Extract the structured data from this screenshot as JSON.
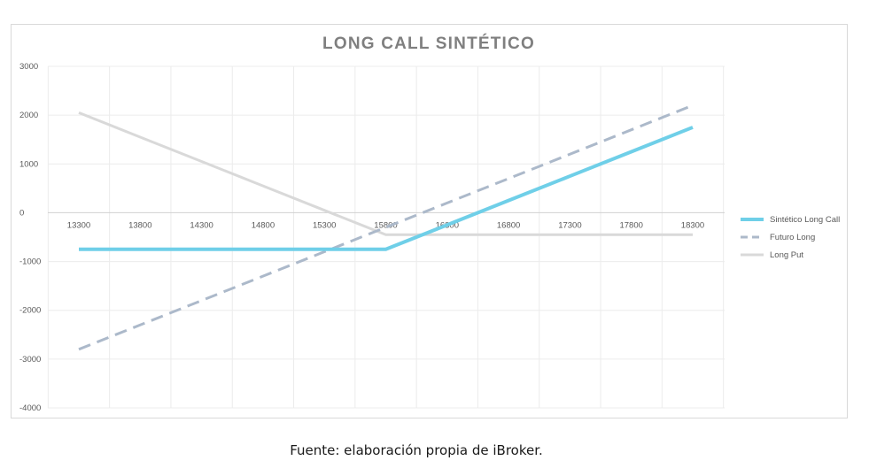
{
  "caption": "Fuente: elaboración propia de iBroker.",
  "chart_data": {
    "type": "line",
    "title": "LONG CALL SINTÉTICO",
    "xlabel": "",
    "ylabel": "",
    "x": [
      13300,
      13800,
      14300,
      14800,
      15300,
      15800,
      16300,
      16800,
      17300,
      17800,
      18300
    ],
    "x_tick_labels": [
      "13300",
      "13800",
      "14300",
      "14800",
      "15300",
      "15800",
      "16300",
      "16800",
      "17300",
      "17800",
      "18300"
    ],
    "ylim": [
      -4000,
      3000
    ],
    "y_ticks": [
      3000,
      2000,
      1000,
      0,
      -1000,
      -2000,
      -3000,
      -4000
    ],
    "y_tick_labels": [
      "3000",
      "2000",
      "1000",
      "0",
      "-1000",
      "-2000",
      "-3000",
      "-4000"
    ],
    "grid": true,
    "legend": "right",
    "series": [
      {
        "name": "Sintético Long Call",
        "color": "#6fcfe8",
        "style": "solid",
        "values": [
          -750,
          -750,
          -750,
          -750,
          -750,
          -750,
          -250,
          250,
          750,
          1250,
          1750
        ]
      },
      {
        "name": "Futuro Long",
        "color": "#acb9ca",
        "style": "dashed",
        "values": [
          -2800,
          -2300,
          -1800,
          -1300,
          -800,
          -300,
          200,
          700,
          1200,
          1700,
          2200
        ]
      },
      {
        "name": "Long Put",
        "color": "#d9d9d9",
        "style": "solid",
        "values": [
          2050,
          1550,
          1050,
          550,
          50,
          -450,
          -450,
          -450,
          -450,
          -450,
          -450
        ]
      }
    ]
  }
}
